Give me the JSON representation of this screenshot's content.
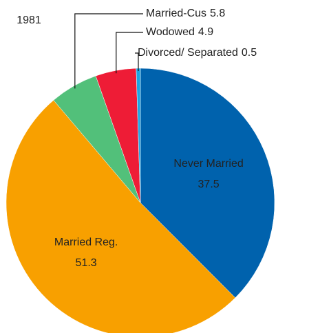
{
  "chart_data": {
    "type": "pie",
    "title": "1981",
    "categories": [
      "Never Married",
      "Married Reg.",
      "Married-Cus",
      "Wodowed",
      "Divorced/ Separated"
    ],
    "values": [
      37.5,
      51.3,
      5.8,
      4.9,
      0.5
    ],
    "colors": [
      "#0062ad",
      "#f8a000",
      "#52c07a",
      "#ee1c36",
      "#1ba6e2"
    ]
  }
}
